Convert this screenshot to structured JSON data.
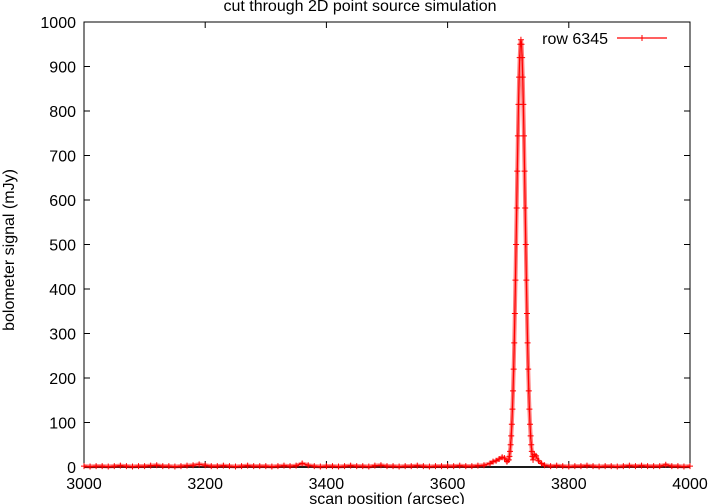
{
  "chart_data": {
    "type": "line",
    "title": "cut through 2D point source simulation",
    "xlabel": "scan position (arcsec)",
    "ylabel": "bolometer signal (mJy)",
    "xlim": [
      3000,
      4000
    ],
    "ylim": [
      0,
      1000
    ],
    "xticks": [
      "3000",
      "3200",
      "3400",
      "3600",
      "3800",
      "4000"
    ],
    "yticks": [
      "0",
      "100",
      "200",
      "300",
      "400",
      "500",
      "600",
      "700",
      "800",
      "900",
      "1000"
    ],
    "grid": false,
    "legend_position": "top-right",
    "zero_axis": true,
    "series": [
      {
        "name": "row 6345",
        "color": "#ff0000",
        "marker": "plus",
        "x": [
          3000,
          3010,
          3020,
          3030,
          3040,
          3050,
          3060,
          3070,
          3080,
          3090,
          3100,
          3110,
          3120,
          3130,
          3140,
          3150,
          3160,
          3170,
          3180,
          3190,
          3200,
          3210,
          3220,
          3230,
          3240,
          3250,
          3260,
          3270,
          3280,
          3290,
          3300,
          3310,
          3320,
          3330,
          3340,
          3350,
          3360,
          3370,
          3380,
          3390,
          3400,
          3410,
          3420,
          3430,
          3440,
          3450,
          3460,
          3470,
          3480,
          3490,
          3500,
          3510,
          3520,
          3530,
          3540,
          3550,
          3560,
          3570,
          3580,
          3590,
          3600,
          3610,
          3620,
          3630,
          3640,
          3650,
          3660,
          3670,
          3675,
          3680,
          3685,
          3690,
          3694,
          3698,
          3701,
          3702,
          3703,
          3704,
          3705,
          3706,
          3707,
          3708,
          3709,
          3710,
          3711,
          3712,
          3713,
          3714,
          3715,
          3716,
          3717,
          3718,
          3719,
          3720,
          3721,
          3722,
          3723,
          3724,
          3725,
          3726,
          3727,
          3728,
          3729,
          3730,
          3731,
          3732,
          3733,
          3734,
          3735,
          3736,
          3737,
          3738,
          3739,
          3740,
          3741,
          3743,
          3746,
          3750,
          3755,
          3760,
          3770,
          3780,
          3790,
          3800,
          3810,
          3820,
          3830,
          3840,
          3850,
          3860,
          3870,
          3880,
          3890,
          3900,
          3910,
          3920,
          3930,
          3940,
          3950,
          3960,
          3970,
          3980,
          3990,
          4000
        ],
        "y": [
          2,
          1,
          2,
          2,
          1,
          2,
          3,
          2,
          1,
          2,
          2,
          3,
          4,
          2,
          2,
          1,
          2,
          3,
          4,
          6,
          4,
          2,
          2,
          3,
          2,
          1,
          2,
          3,
          2,
          2,
          2,
          1,
          2,
          3,
          2,
          3,
          8,
          4,
          2,
          1,
          2,
          2,
          1,
          2,
          3,
          2,
          2,
          1,
          3,
          4,
          2,
          2,
          1,
          2,
          2,
          3,
          2,
          1,
          2,
          2,
          2,
          2,
          3,
          2,
          2,
          3,
          4,
          8,
          12,
          14,
          18,
          22,
          20,
          12,
          16,
          24,
          35,
          50,
          70,
          96,
          130,
          171,
          220,
          279,
          345,
          420,
          500,
          582,
          665,
          744,
          815,
          876,
          920,
          950,
          960,
          950,
          920,
          876,
          815,
          744,
          665,
          582,
          500,
          420,
          345,
          279,
          220,
          171,
          130,
          96,
          70,
          50,
          35,
          24,
          16,
          28,
          25,
          14,
          8,
          4,
          2,
          3,
          2,
          1,
          2,
          2,
          3,
          2,
          1,
          2,
          2,
          1,
          2,
          3,
          2,
          3,
          2,
          2,
          2,
          5,
          2,
          2,
          1,
          2
        ]
      }
    ]
  }
}
